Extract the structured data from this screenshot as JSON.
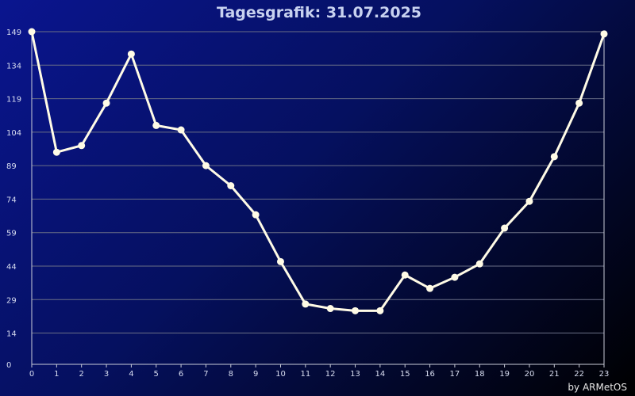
{
  "chart_data": {
    "type": "line",
    "title": "Tagesgrafik: 31.07.2025",
    "x": [
      0,
      1,
      2,
      3,
      4,
      5,
      6,
      7,
      8,
      9,
      10,
      11,
      12,
      13,
      14,
      15,
      16,
      17,
      18,
      19,
      20,
      21,
      22,
      23
    ],
    "xticks": [
      "0",
      "1",
      "2",
      "3",
      "4",
      "5",
      "6",
      "7",
      "8",
      "9",
      "10",
      "11",
      "12",
      "13",
      "14",
      "15",
      "16",
      "17",
      "18",
      "19",
      "20",
      "21",
      "22",
      "23"
    ],
    "yticks": [
      "0",
      "14",
      "29",
      "44",
      "59",
      "74",
      "89",
      "104",
      "119",
      "134",
      "149"
    ],
    "ylim": [
      0,
      149
    ],
    "xlim": [
      0,
      23
    ],
    "series": [
      {
        "values": [
          149,
          95,
          98,
          117,
          139,
          107,
          105,
          89,
          80,
          67,
          46,
          27,
          25,
          24,
          24,
          40,
          34,
          39,
          45,
          61,
          73,
          93,
          117,
          148
        ]
      }
    ],
    "grid": true,
    "line_color": "#fffbe6",
    "marker_color": "#fffbe6",
    "grid_color": "#6a6f86"
  },
  "footer": "by ARMetOS"
}
